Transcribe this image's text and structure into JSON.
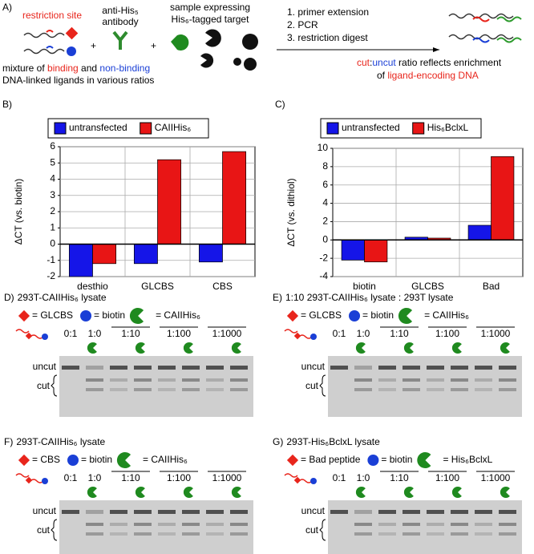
{
  "panel_a": {
    "label": "A)",
    "restriction_site": "restriction site",
    "plus": [
      "+",
      "+"
    ],
    "antibody": [
      "anti-His₅",
      "antibody"
    ],
    "sample": [
      "sample expressing",
      "His₆-tagged target"
    ],
    "mixture": [
      "mixture of ",
      "binding",
      " and ",
      "non-binding"
    ],
    "mixture_2": "DNA-linked ligands in various ratios",
    "steps": [
      "1. primer extension",
      "2. PCR",
      "3. restriction digest"
    ],
    "result": [
      "cut",
      ":",
      "uncut",
      " ratio reflects enrichment"
    ],
    "result_2": [
      "of ",
      "ligand-encoding DNA"
    ]
  },
  "chart_data": [
    {
      "type": "bar",
      "label": "B)",
      "ylabel": "ΔCT (vs. biotin)",
      "categories": [
        "desthio",
        "GLCBS",
        "CBS"
      ],
      "series": [
        {
          "name": "untransfected",
          "color": "#1515e8",
          "values": [
            -2,
            -1.2,
            -1.1
          ]
        },
        {
          "name": "CAIIHis₆",
          "color": "#e81515",
          "values": [
            -1.2,
            5.2,
            5.7
          ]
        }
      ],
      "ylim": [
        -2,
        6
      ],
      "yticks": [
        -2,
        -1,
        0,
        1,
        2,
        3,
        4,
        5,
        6
      ],
      "grid": true
    },
    {
      "type": "bar",
      "label": "C)",
      "ylabel": "ΔCT (vs. dithiol)",
      "categories": [
        "biotin",
        "GLCBS",
        "Bad"
      ],
      "series": [
        {
          "name": "untransfected",
          "color": "#1515e8",
          "values": [
            -2.2,
            0.3,
            1.6
          ]
        },
        {
          "name": "His₆BclxL",
          "color": "#e81515",
          "values": [
            -2.4,
            0.2,
            9.1
          ]
        }
      ],
      "ylim": [
        -4,
        10
      ],
      "yticks": [
        -4,
        -2,
        0,
        2,
        4,
        6,
        8,
        10
      ],
      "grid": true
    }
  ],
  "gels": [
    {
      "label": "D)",
      "title": "293T-CAIIHis₆ lysate",
      "legend": [
        "= GLCBS",
        "= biotin",
        "= CAIIHis₆"
      ],
      "ratios": [
        "0:1",
        "1:0",
        "1:10",
        "1:100",
        "1:1000"
      ],
      "band_labels": [
        "uncut",
        "cut"
      ]
    },
    {
      "label": "E)",
      "title": "1:10 293T-CAIIHis₆ lysate : 293T lysate",
      "legend": [
        "= GLCBS",
        "= biotin",
        "= CAIIHis₆"
      ],
      "ratios": [
        "0:1",
        "1:0",
        "1:10",
        "1:100",
        "1:1000"
      ],
      "band_labels": [
        "uncut",
        "cut"
      ]
    },
    {
      "label": "F)",
      "title": "293T-CAIIHis₆ lysate",
      "legend": [
        "= CBS",
        "= biotin",
        "= CAIIHis₆"
      ],
      "ratios": [
        "0:1",
        "1:0",
        "1:10",
        "1:100",
        "1:1000"
      ],
      "band_labels": [
        "uncut",
        "cut"
      ]
    },
    {
      "label": "G)",
      "title": "293T-His₆BclxL lysate",
      "legend": [
        "= Bad peptide",
        "= biotin",
        "= His₆BclxL"
      ],
      "ratios": [
        "0:1",
        "1:0",
        "1:10",
        "1:100",
        "1:1000"
      ],
      "band_labels": [
        "uncut",
        "cut"
      ]
    }
  ]
}
